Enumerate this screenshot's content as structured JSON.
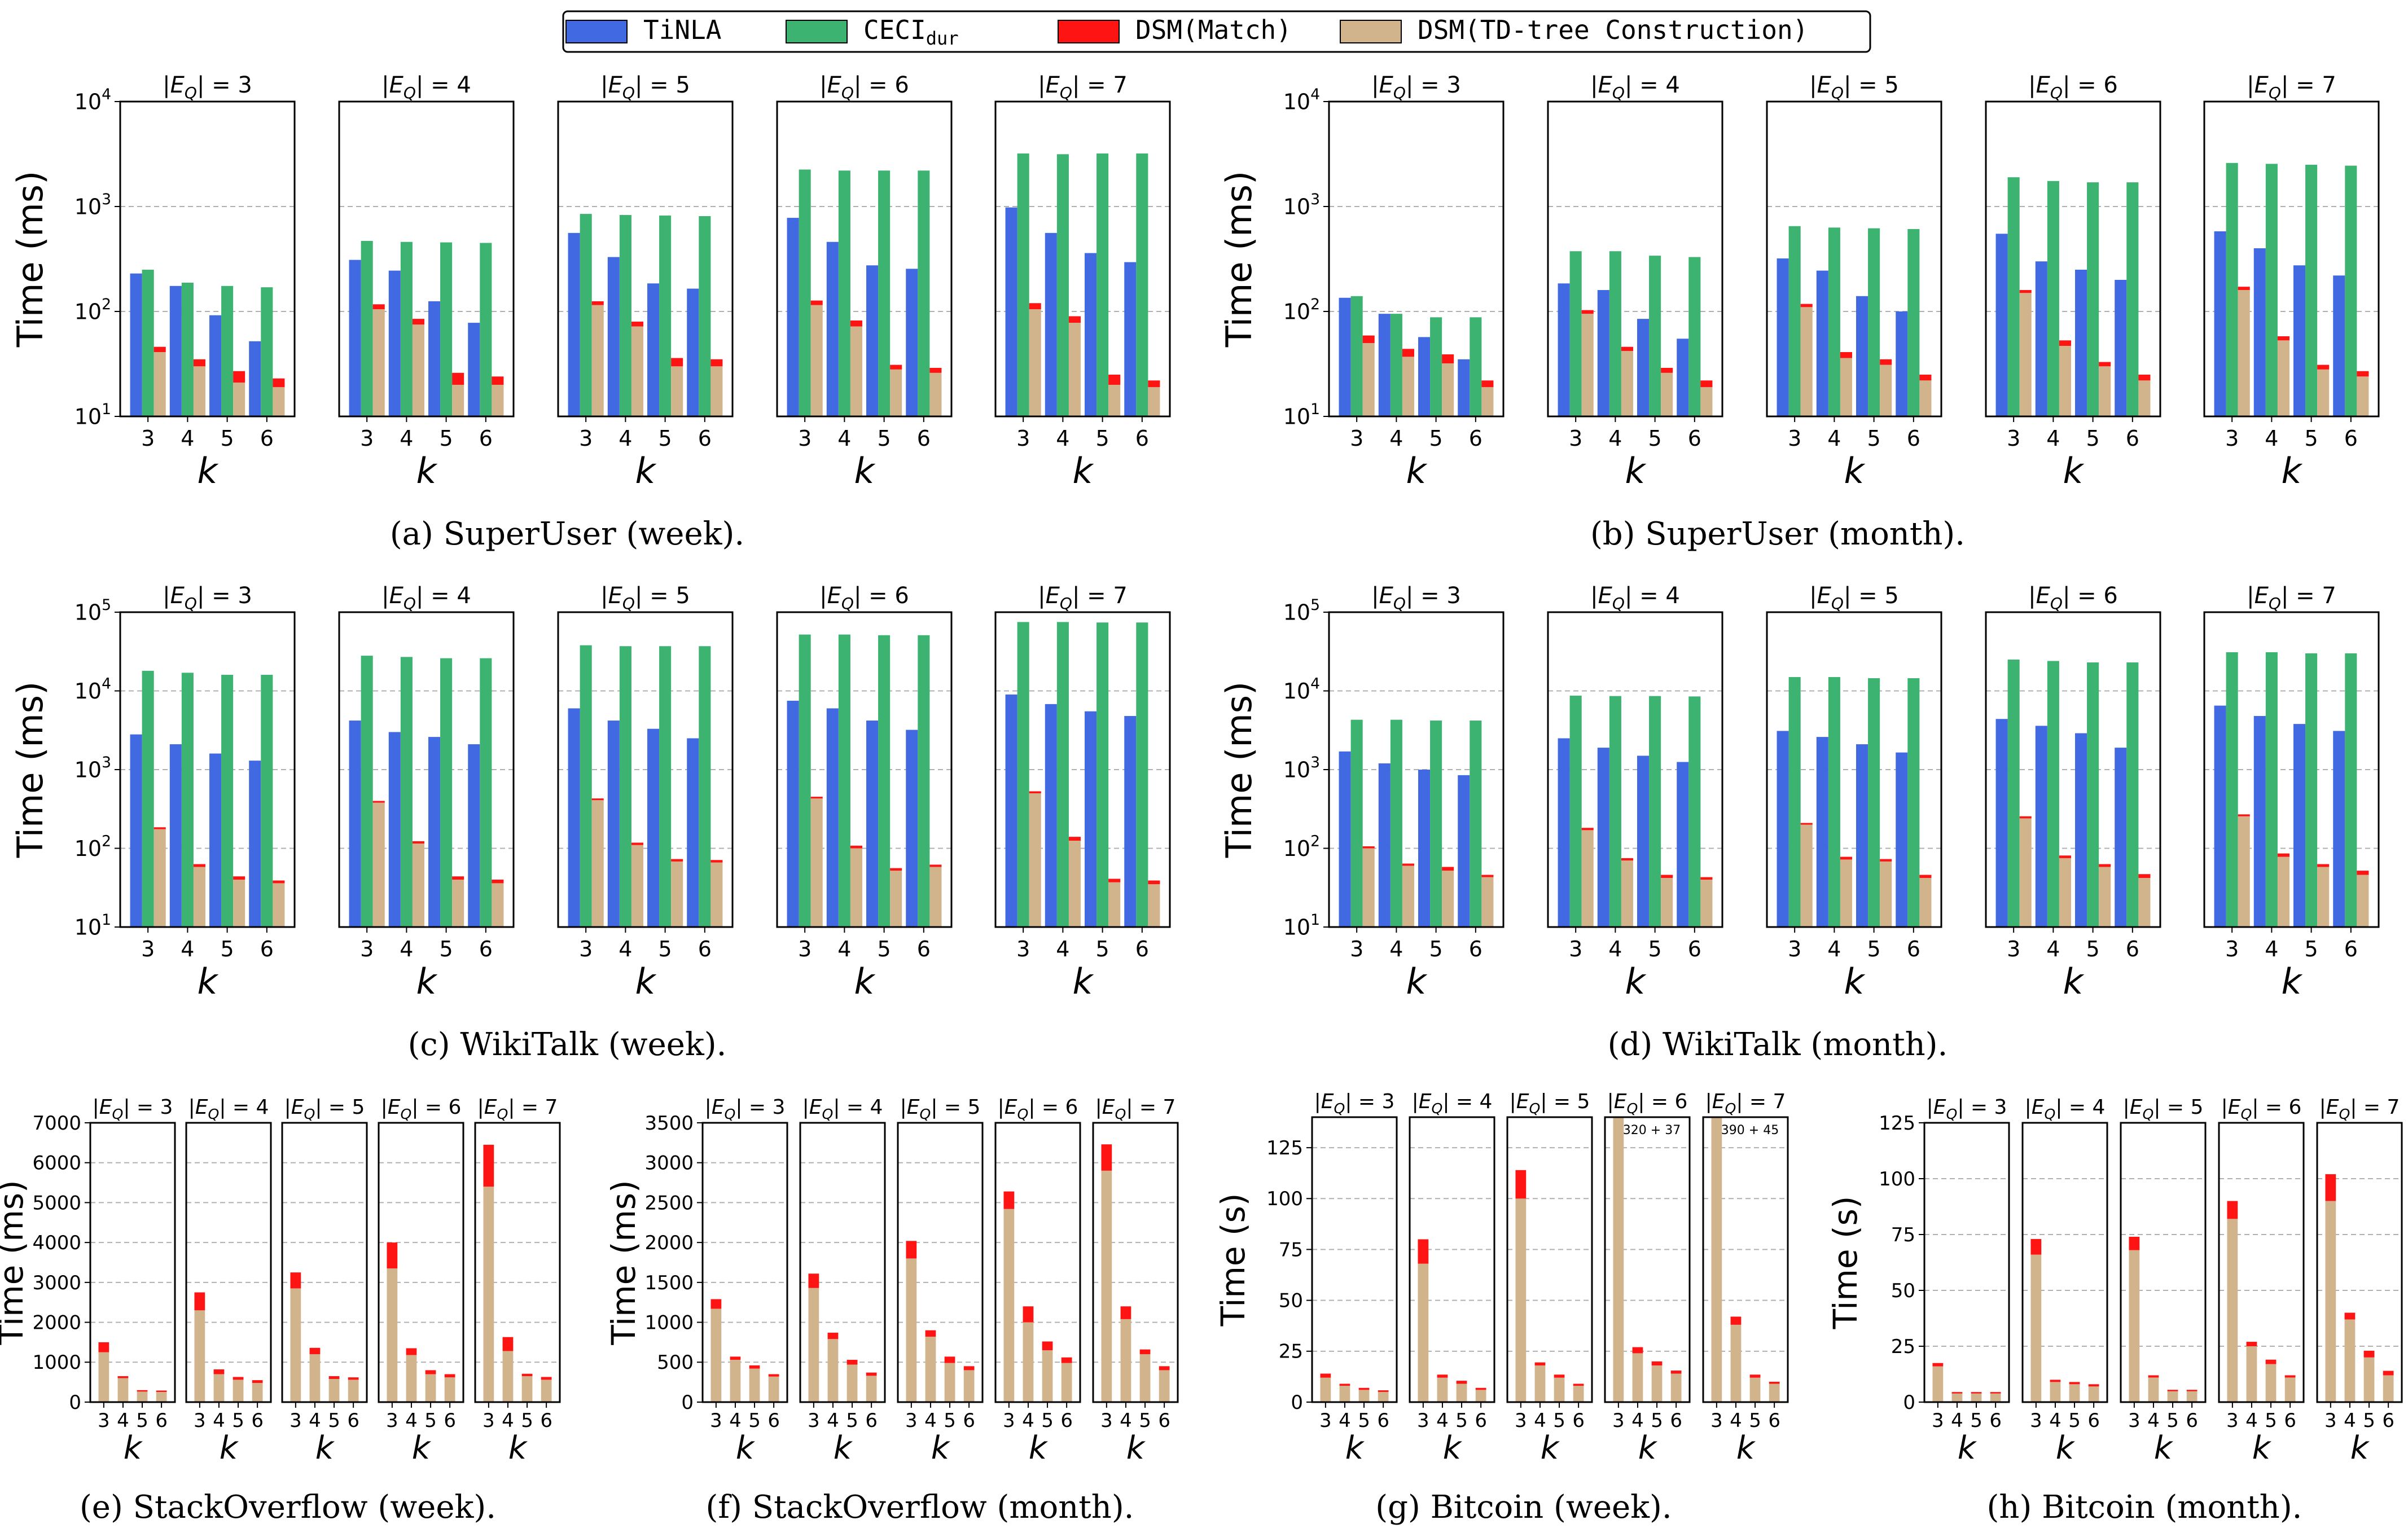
{
  "legend": [
    {
      "label": "TiNLA",
      "sub": "",
      "color": "#4169e1"
    },
    {
      "label": "CECI",
      "sub": "dur",
      "color": "#3cb371"
    },
    {
      "label": "DSM(Match)",
      "sub": "",
      "color": "#ff1414"
    },
    {
      "label": "DSM(TD-tree Construction)",
      "sub": "",
      "color": "#d2b48c"
    }
  ],
  "colors": {
    "tinla": "#4169e1",
    "ceci": "#3cb371",
    "match": "#ff1414",
    "td": "#d2b48c"
  },
  "panel_titles": [
    "|E_Q| = 3",
    "|E_Q| = 4",
    "|E_Q| = 5",
    "|E_Q| = 6",
    "|E_Q| = 7"
  ],
  "chart_data": [
    {
      "id": "a",
      "type": "bar",
      "scale": "log",
      "caption": "(a) SuperUser (week).",
      "ylabel": "Time (ms)",
      "xlabel": "k",
      "categories": [
        "3",
        "4",
        "5",
        "6"
      ],
      "ylim": [
        10,
        10000
      ],
      "yticks": [
        10,
        100,
        1000,
        10000
      ],
      "ytick_labels": [
        "10^1",
        "10^2",
        "10^3",
        "10^4"
      ],
      "series_names": [
        "TiNLA",
        "CECI_dur",
        "DSM(Match)",
        "DSM(TD-tree Construction)"
      ],
      "panels": [
        {
          "tinla": [
            230,
            175,
            92,
            52
          ],
          "ceci": [
            250,
            188,
            175,
            170
          ],
          "td": [
            41,
            30,
            21,
            19
          ],
          "match": [
            5,
            5,
            6,
            4
          ]
        },
        {
          "tinla": [
            310,
            245,
            125,
            78
          ],
          "ceci": [
            470,
            460,
            455,
            450
          ],
          "td": [
            105,
            75,
            20,
            20
          ],
          "match": [
            12,
            10,
            6,
            4
          ]
        },
        {
          "tinla": [
            560,
            330,
            185,
            165
          ],
          "ceci": [
            850,
            830,
            820,
            810
          ],
          "td": [
            115,
            72,
            30,
            30
          ],
          "match": [
            10,
            8,
            6,
            5
          ]
        },
        {
          "tinla": [
            780,
            460,
            275,
            255
          ],
          "ceci": [
            2250,
            2200,
            2200,
            2200
          ],
          "td": [
            115,
            72,
            28,
            26
          ],
          "match": [
            12,
            10,
            3,
            3
          ]
        },
        {
          "tinla": [
            980,
            560,
            360,
            295
          ],
          "ceci": [
            3200,
            3150,
            3200,
            3200
          ],
          "td": [
            105,
            78,
            20,
            19
          ],
          "match": [
            15,
            12,
            5,
            3
          ]
        }
      ]
    },
    {
      "id": "b",
      "type": "bar",
      "scale": "log",
      "caption": "(b) SuperUser (month).",
      "ylabel": "Time (ms)",
      "xlabel": "k",
      "categories": [
        "3",
        "4",
        "5",
        "6"
      ],
      "ylim": [
        10,
        10000
      ],
      "yticks": [
        10,
        100,
        1000,
        10000
      ],
      "ytick_labels": [
        "10^1",
        "10^2",
        "10^3",
        "10^4"
      ],
      "series_names": [
        "TiNLA",
        "CECI_dur",
        "DSM(Match)",
        "DSM(TD-tree Construction)"
      ],
      "panels": [
        {
          "tinla": [
            135,
            95,
            57,
            35
          ],
          "ceci": [
            140,
            95,
            88,
            88
          ],
          "td": [
            50,
            37,
            32,
            19
          ],
          "match": [
            9,
            7,
            7,
            3
          ]
        },
        {
          "tinla": [
            185,
            160,
            85,
            55
          ],
          "ceci": [
            375,
            375,
            340,
            330
          ],
          "td": [
            95,
            42,
            26,
            19
          ],
          "match": [
            8,
            4,
            3,
            3
          ]
        },
        {
          "tinla": [
            320,
            245,
            140,
            100
          ],
          "ceci": [
            650,
            630,
            620,
            610
          ],
          "td": [
            110,
            36,
            31,
            22
          ],
          "match": [
            8,
            5,
            4,
            3
          ]
        },
        {
          "tinla": [
            550,
            300,
            250,
            200
          ],
          "ceci": [
            1900,
            1750,
            1700,
            1700
          ],
          "td": [
            150,
            47,
            30,
            22
          ],
          "match": [
            10,
            6,
            3,
            3
          ]
        },
        {
          "tinla": [
            580,
            400,
            275,
            220
          ],
          "ceci": [
            2600,
            2550,
            2500,
            2450
          ],
          "td": [
            160,
            53,
            28,
            24
          ],
          "match": [
            12,
            5,
            3,
            3
          ]
        }
      ]
    },
    {
      "id": "c",
      "type": "bar",
      "scale": "log",
      "caption": "(c) WikiTalk (week).",
      "ylabel": "Time (ms)",
      "xlabel": "k",
      "categories": [
        "3",
        "4",
        "5",
        "6"
      ],
      "ylim": [
        10,
        100000
      ],
      "yticks": [
        10,
        100,
        1000,
        10000,
        100000
      ],
      "ytick_labels": [
        "10^1",
        "10^2",
        "10^3",
        "10^4",
        "10^5"
      ],
      "series_names": [
        "TiNLA",
        "CECI_dur",
        "DSM(Match)",
        "DSM(TD-tree Construction)"
      ],
      "panels": [
        {
          "tinla": [
            2800,
            2100,
            1600,
            1300
          ],
          "ceci": [
            18000,
            17000,
            16000,
            16000
          ],
          "td": [
            175,
            58,
            40,
            36
          ],
          "match": [
            10,
            5,
            4,
            3
          ]
        },
        {
          "tinla": [
            4200,
            3000,
            2600,
            2100
          ],
          "ceci": [
            28000,
            27000,
            26000,
            26000
          ],
          "td": [
            380,
            115,
            40,
            36
          ],
          "match": [
            20,
            8,
            4,
            4
          ]
        },
        {
          "tinla": [
            6000,
            4200,
            3300,
            2500
          ],
          "ceci": [
            38000,
            37000,
            37000,
            37000
          ],
          "td": [
            410,
            110,
            68,
            66
          ],
          "match": [
            20,
            8,
            5,
            5
          ]
        },
        {
          "tinla": [
            7500,
            6000,
            4200,
            3200
          ],
          "ceci": [
            52000,
            52000,
            51000,
            51000
          ],
          "td": [
            430,
            100,
            52,
            58
          ],
          "match": [
            22,
            8,
            4,
            4
          ]
        },
        {
          "tinla": [
            9000,
            6800,
            5500,
            4800
          ],
          "ceci": [
            75000,
            75000,
            74000,
            74000
          ],
          "td": [
            500,
            125,
            37,
            35
          ],
          "match": [
            30,
            15,
            4,
            4
          ]
        }
      ]
    },
    {
      "id": "d",
      "type": "bar",
      "scale": "log",
      "caption": "(d) WikiTalk (month).",
      "ylabel": "Time (ms)",
      "xlabel": "k",
      "categories": [
        "3",
        "4",
        "5",
        "6"
      ],
      "ylim": [
        10,
        100000
      ],
      "yticks": [
        10,
        100,
        1000,
        10000,
        100000
      ],
      "ytick_labels": [
        "10^1",
        "10^2",
        "10^3",
        "10^4",
        "10^5"
      ],
      "series_names": [
        "TiNLA",
        "CECI_dur",
        "DSM(Match)",
        "DSM(TD-tree Construction)"
      ],
      "panels": [
        {
          "tinla": [
            1700,
            1200,
            1000,
            850
          ],
          "ceci": [
            4300,
            4300,
            4200,
            4200
          ],
          "td": [
            100,
            60,
            52,
            43
          ],
          "match": [
            6,
            4,
            6,
            3
          ]
        },
        {
          "tinla": [
            2500,
            1900,
            1500,
            1250
          ],
          "ceci": [
            8700,
            8600,
            8600,
            8500
          ],
          "td": [
            170,
            70,
            42,
            40
          ],
          "match": [
            12,
            5,
            4,
            3
          ]
        },
        {
          "tinla": [
            3100,
            2600,
            2100,
            1650
          ],
          "ceci": [
            15000,
            15000,
            14500,
            14500
          ],
          "td": [
            200,
            72,
            68,
            42
          ],
          "match": [
            10,
            6,
            5,
            4
          ]
        },
        {
          "tinla": [
            4400,
            3600,
            2900,
            1900
          ],
          "ceci": [
            25000,
            24000,
            23000,
            23000
          ],
          "td": [
            240,
            75,
            58,
            42
          ],
          "match": [
            15,
            6,
            5,
            5
          ]
        },
        {
          "tinla": [
            6500,
            4800,
            3800,
            3100
          ],
          "ceci": [
            31000,
            31000,
            30000,
            30000
          ],
          "td": [
            255,
            78,
            58,
            46
          ],
          "match": [
            15,
            8,
            5,
            6
          ]
        }
      ]
    },
    {
      "id": "e",
      "type": "bar",
      "scale": "linear",
      "caption": "(e) StackOverflow (week).",
      "ylabel": "Time (ms)",
      "xlabel": "k",
      "categories": [
        "3",
        "4",
        "5",
        "6"
      ],
      "ylim": [
        0,
        7000
      ],
      "yticks": [
        0,
        1000,
        2000,
        3000,
        4000,
        5000,
        6000,
        7000
      ],
      "ytick_labels": [
        "0",
        "1000",
        "2000",
        "3000",
        "4000",
        "5000",
        "6000",
        "7000"
      ],
      "series_names": [
        "DSM(Match)",
        "DSM(TD-tree Construction)"
      ],
      "panels": [
        {
          "td": [
            1250,
            600,
            270,
            260
          ],
          "match": [
            250,
            50,
            30,
            30
          ]
        },
        {
          "td": [
            2300,
            700,
            560,
            480
          ],
          "match": [
            450,
            120,
            70,
            70
          ]
        },
        {
          "td": [
            2850,
            1200,
            580,
            560
          ],
          "match": [
            400,
            160,
            70,
            60
          ]
        },
        {
          "td": [
            3350,
            1180,
            700,
            620
          ],
          "match": [
            650,
            170,
            100,
            80
          ]
        },
        {
          "td": [
            5400,
            1280,
            650,
            560
          ],
          "match": [
            1050,
            350,
            60,
            70
          ]
        }
      ]
    },
    {
      "id": "f",
      "type": "bar",
      "scale": "linear",
      "caption": "(f) StackOverflow (month).",
      "ylabel": "Time (ms)",
      "xlabel": "k",
      "categories": [
        "3",
        "4",
        "5",
        "6"
      ],
      "ylim": [
        0,
        3500
      ],
      "yticks": [
        0,
        500,
        1000,
        1500,
        2000,
        2500,
        3000,
        3500
      ],
      "ytick_labels": [
        "0",
        "500",
        "1000",
        "1500",
        "2000",
        "2500",
        "3000",
        "3500"
      ],
      "series_names": [
        "DSM(Match)",
        "DSM(TD-tree Construction)"
      ],
      "panels": [
        {
          "td": [
            1170,
            530,
            420,
            320
          ],
          "match": [
            120,
            40,
            40,
            30
          ]
        },
        {
          "td": [
            1430,
            790,
            470,
            330
          ],
          "match": [
            180,
            80,
            60,
            40
          ]
        },
        {
          "td": [
            1800,
            820,
            490,
            400
          ],
          "match": [
            220,
            80,
            80,
            50
          ]
        },
        {
          "td": [
            2420,
            1000,
            650,
            490
          ],
          "match": [
            220,
            200,
            110,
            70
          ]
        },
        {
          "td": [
            2900,
            1040,
            600,
            400
          ],
          "match": [
            330,
            160,
            60,
            50
          ]
        }
      ]
    },
    {
      "id": "g",
      "type": "bar",
      "scale": "linear",
      "caption": "(g) Bitcoin (week).",
      "ylabel": "Time (s)",
      "xlabel": "k",
      "categories": [
        "3",
        "4",
        "5",
        "6"
      ],
      "ylim": [
        0,
        140
      ],
      "yticks": [
        0,
        25,
        50,
        75,
        100,
        125
      ],
      "ytick_labels": [
        "0",
        "25",
        "50",
        "75",
        "100",
        "125"
      ],
      "series_names": [
        "DSM(Match)",
        "DSM(TD-tree Construction)"
      ],
      "overflow_labels": [
        "",
        "",
        "",
        "320 + 37",
        "390 + 45"
      ],
      "panels": [
        {
          "td": [
            12,
            8,
            6,
            5
          ],
          "match": [
            2,
            1,
            1,
            0.8
          ]
        },
        {
          "td": [
            68,
            12,
            9,
            6
          ],
          "match": [
            12,
            1.5,
            1.5,
            1
          ]
        },
        {
          "td": [
            100,
            18,
            12,
            8
          ],
          "match": [
            14,
            1.5,
            1.5,
            1
          ]
        },
        {
          "td": [
            320,
            24,
            18,
            14
          ],
          "match": [
            37,
            3,
            2,
            1.5
          ]
        },
        {
          "td": [
            390,
            38,
            12,
            9
          ],
          "match": [
            45,
            4,
            1.5,
            1
          ]
        }
      ]
    },
    {
      "id": "h",
      "type": "bar",
      "scale": "linear",
      "caption": "(h) Bitcoin (month).",
      "ylabel": "Time (s)",
      "xlabel": "k",
      "categories": [
        "3",
        "4",
        "5",
        "6"
      ],
      "ylim": [
        0,
        125
      ],
      "yticks": [
        0,
        25,
        50,
        75,
        100,
        125
      ],
      "ytick_labels": [
        "0",
        "25",
        "50",
        "75",
        "100",
        "125"
      ],
      "series_names": [
        "DSM(Match)",
        "DSM(TD-tree Construction)"
      ],
      "panels": [
        {
          "td": [
            16,
            4,
            4,
            4
          ],
          "match": [
            1.5,
            0.5,
            0.5,
            0.5
          ]
        },
        {
          "td": [
            66,
            9,
            8,
            7
          ],
          "match": [
            7,
            1,
            1,
            1
          ]
        },
        {
          "td": [
            68,
            11,
            5,
            5
          ],
          "match": [
            6,
            1,
            0.5,
            0.5
          ]
        },
        {
          "td": [
            82,
            25,
            17,
            11
          ],
          "match": [
            8,
            2,
            2,
            1
          ]
        },
        {
          "td": [
            90,
            37,
            20,
            12
          ],
          "match": [
            12,
            3,
            3,
            2
          ]
        }
      ]
    }
  ]
}
